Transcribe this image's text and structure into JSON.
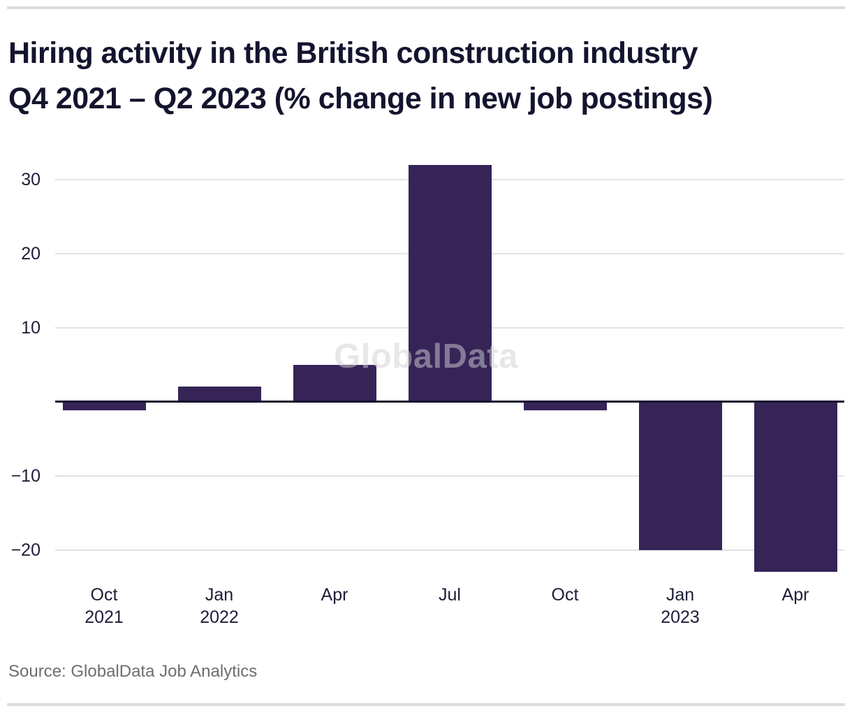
{
  "page": {
    "title_line1": "Hiring activity in the British construction industry",
    "title_line2": "Q4 2021 – Q2 2023 (% change in new job postings)",
    "watermark": "GlobalData",
    "source": "Source: GlobalData Job Analytics"
  },
  "colors": {
    "bar": "#362457",
    "zero_axis": "#15112e",
    "gridline": "#e2e2e2",
    "title_text": "#14142e",
    "axis_text": "#1e1e3a",
    "source_text": "#6e6e6e",
    "divider": "#dcdcdc",
    "watermark_text": "rgba(208,208,214,0.5)"
  },
  "chart_data": {
    "type": "bar",
    "title": "Hiring activity in the British construction industry Q4 2021 – Q2 2023 (% change in new job postings)",
    "categories": [
      {
        "month": "Oct",
        "year": "2021"
      },
      {
        "month": "Jan",
        "year": "2022"
      },
      {
        "month": "Apr",
        "year": ""
      },
      {
        "month": "Jul",
        "year": ""
      },
      {
        "month": "Oct",
        "year": ""
      },
      {
        "month": "Jan",
        "year": "2023"
      },
      {
        "month": "Apr",
        "year": ""
      }
    ],
    "values": [
      -1.2,
      2,
      5,
      32,
      -1.2,
      -20,
      -23
    ],
    "ylabel": "% change in new job postings",
    "yticks": [
      30,
      20,
      10,
      -10,
      -20
    ],
    "ylim": [
      -24,
      33
    ],
    "grid": true,
    "legend": false
  }
}
